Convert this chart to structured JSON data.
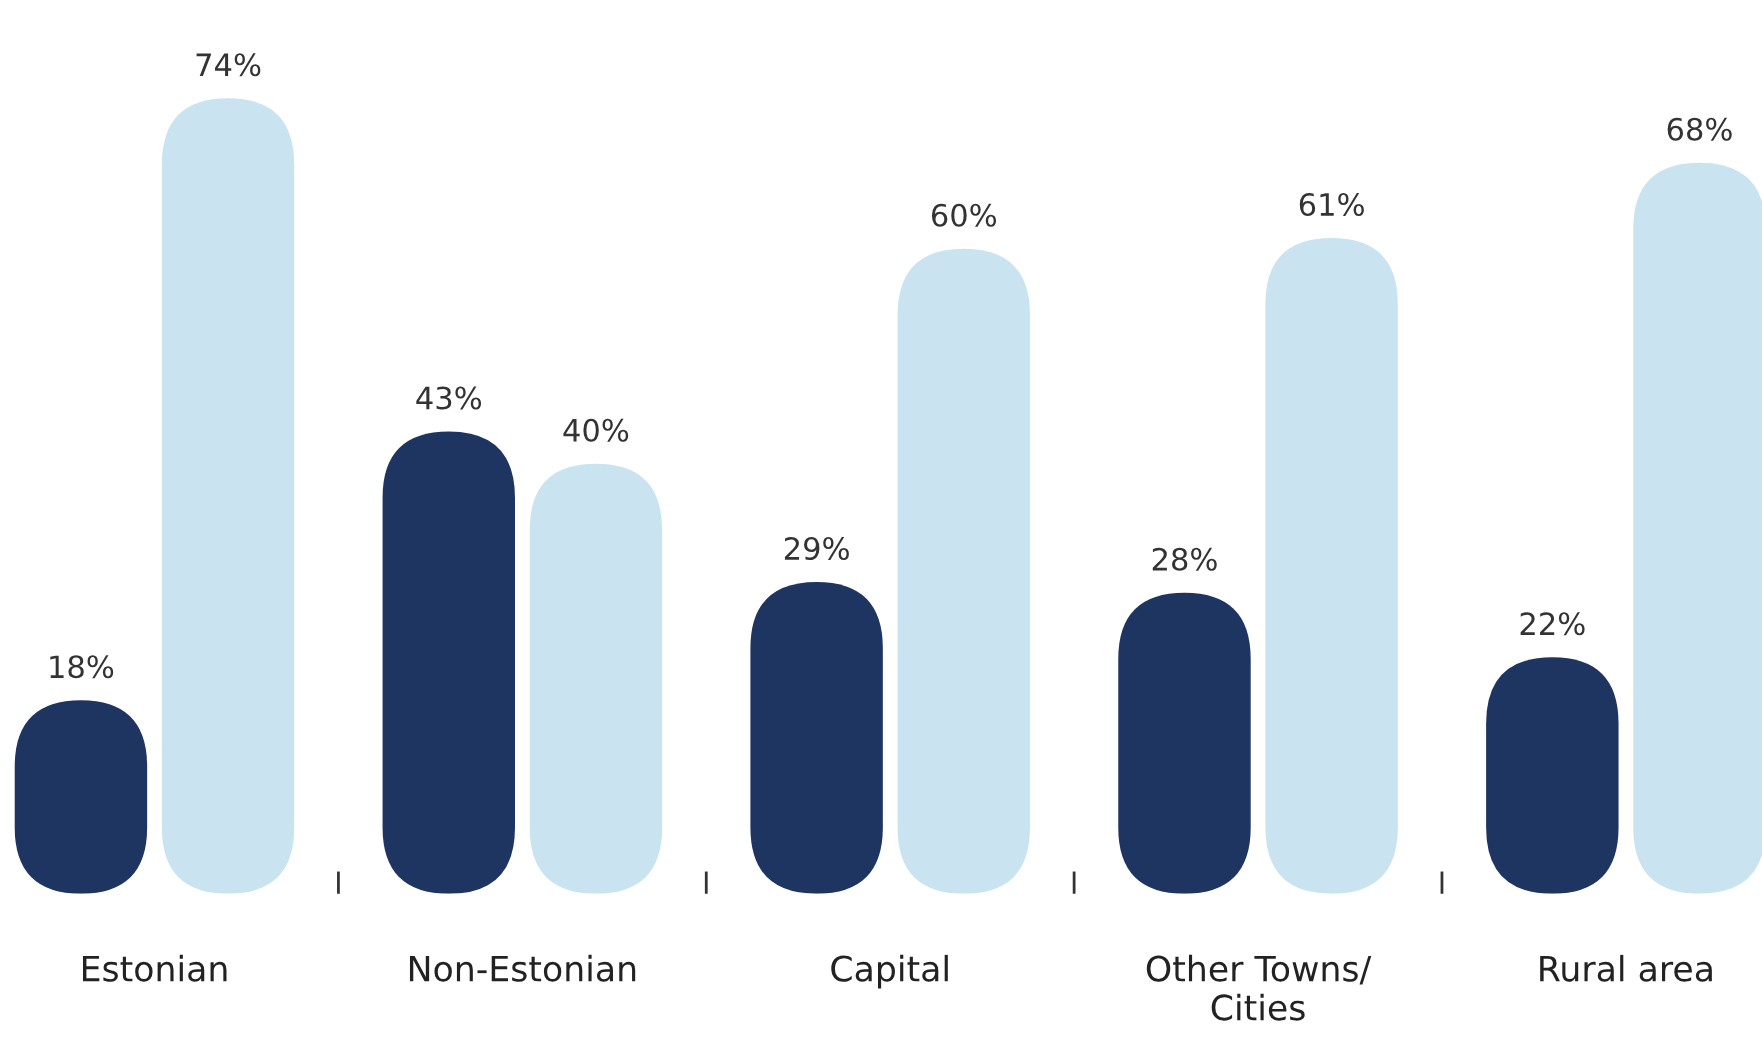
{
  "chart_data": {
    "type": "bar",
    "categories": [
      "Estonian",
      "Non-Estonian",
      "Capital",
      "Other Towns/\nCities",
      "Rural area"
    ],
    "series": [
      {
        "color": "#1e3461",
        "values": [
          18,
          43,
          29,
          28,
          22
        ],
        "value_labels": [
          "18%",
          "43%",
          "29%",
          "28%",
          "22%"
        ]
      },
      {
        "color": "#c9e3f0",
        "values": [
          74,
          40,
          60,
          61,
          68
        ],
        "value_labels": [
          "74%",
          "40%",
          "60%",
          "61%",
          "68%"
        ]
      }
    ],
    "grid": false,
    "legend": false
  }
}
